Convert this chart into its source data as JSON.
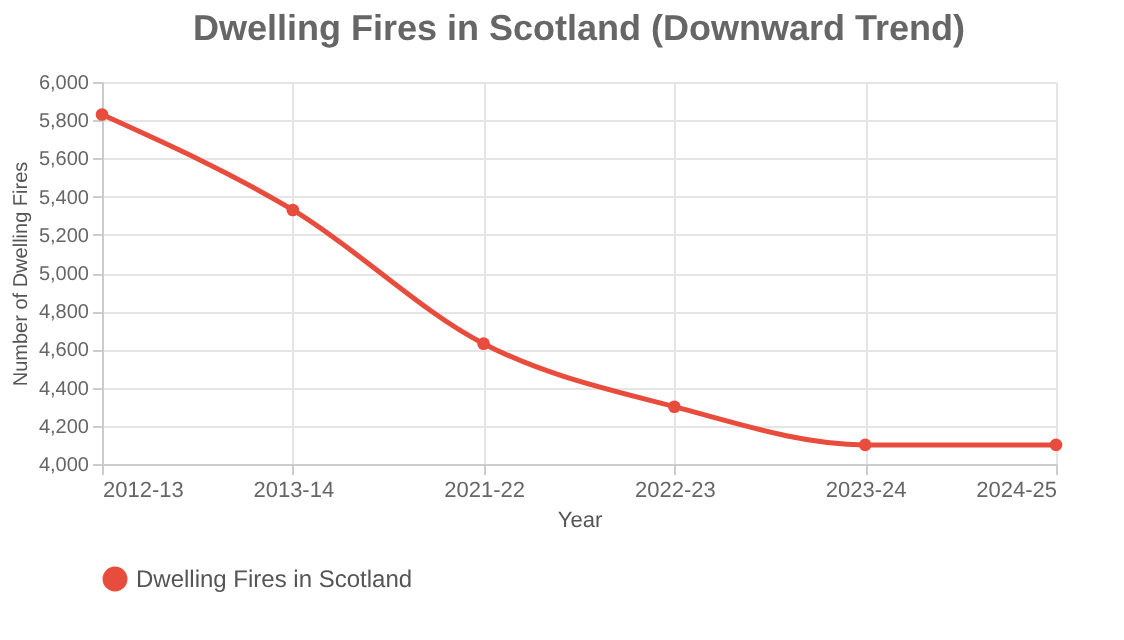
{
  "chart_data": {
    "type": "line",
    "title": "Dwelling Fires in Scotland (Downward Trend)",
    "xlabel": "Year",
    "ylabel": "Number of Dwelling Fires",
    "categories": [
      "2012-13",
      "2013-14",
      "2021-22",
      "2022-23",
      "2023-24",
      "2024-25"
    ],
    "series": [
      {
        "name": "Dwelling Fires in Scotland",
        "color": "#e74c3c",
        "values": [
          5830,
          5330,
          4630,
          4300,
          4100,
          4100
        ]
      }
    ],
    "ylim": [
      4000,
      6000
    ],
    "yticks": [
      {
        "value": 4000,
        "label": "4,000"
      },
      {
        "value": 4200,
        "label": "4,200"
      },
      {
        "value": 4400,
        "label": "4,400"
      },
      {
        "value": 4600,
        "label": "4,600"
      },
      {
        "value": 4800,
        "label": "4,800"
      },
      {
        "value": 5000,
        "label": "5,000"
      },
      {
        "value": 5200,
        "label": "5,200"
      },
      {
        "value": 5400,
        "label": "5,400"
      },
      {
        "value": 5600,
        "label": "5,600"
      },
      {
        "value": 5800,
        "label": "5,800"
      },
      {
        "value": 6000,
        "label": "6,000"
      }
    ],
    "grid": true,
    "legend": "bottom",
    "marker": "circle",
    "line_style": "solid"
  }
}
